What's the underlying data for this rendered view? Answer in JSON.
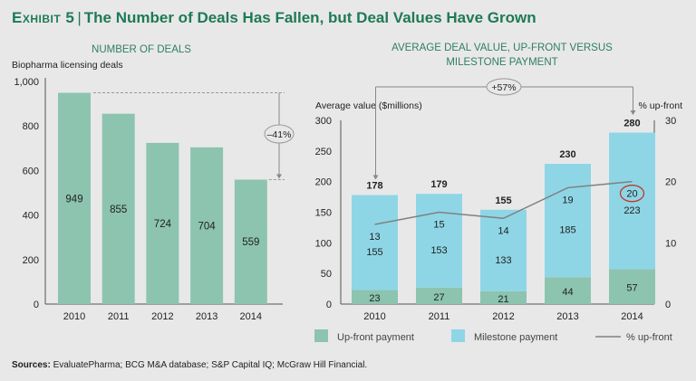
{
  "header": {
    "exhibit": "Exhibit 5",
    "title": "The Number of Deals Has Fallen, but Deal Values Have Grown"
  },
  "colors": {
    "title_green": "#1e7a55",
    "upfront": "#8cc4b0",
    "milestone": "#8ed6e6",
    "line": "#808080",
    "highlight_circle": "#c0392b"
  },
  "chart_data": [
    {
      "type": "bar",
      "title": "NUMBER OF DEALS",
      "ylabel": "Biopharma licensing deals",
      "xlabel": "",
      "categories": [
        "2010",
        "2011",
        "2012",
        "2013",
        "2014"
      ],
      "values": [
        949,
        855,
        724,
        704,
        559
      ],
      "value_labels": [
        "949",
        "855",
        "724",
        "704",
        "559"
      ],
      "ylim": [
        0,
        1000
      ],
      "yticks": [
        0,
        200,
        400,
        600,
        800,
        1000
      ],
      "ytick_labels": [
        "0",
        "200",
        "400",
        "600",
        "800",
        "1,000"
      ],
      "grid": false,
      "annotation": {
        "label": "–41%",
        "from": "2010",
        "to": "2014"
      }
    },
    {
      "type": "bar",
      "stacked": true,
      "title": "AVERAGE DEAL VALUE, UP-FRONT VERSUS MILESTONE PAYMENT",
      "ylabel": "Average value ($millions)",
      "y2label": "% up-front",
      "categories": [
        "2010",
        "2011",
        "2012",
        "2013",
        "2014"
      ],
      "series": [
        {
          "name": "Up-front payment",
          "values": [
            23,
            27,
            21,
            44,
            57
          ]
        },
        {
          "name": "Milestone payment",
          "values": [
            155,
            153,
            133,
            185,
            223
          ]
        }
      ],
      "totals": [
        178,
        179,
        155,
        230,
        280
      ],
      "line_series": {
        "name": "% up-front",
        "axis": "right",
        "values": [
          13,
          15,
          14,
          19,
          20
        ]
      },
      "ylim": [
        0,
        300
      ],
      "yticks": [
        0,
        50,
        100,
        150,
        200,
        250,
        300
      ],
      "y2lim": [
        0,
        30
      ],
      "y2ticks": [
        0,
        10,
        20,
        30
      ],
      "grid": false,
      "annotation": {
        "label": "+57%",
        "from": "2010",
        "to": "2014"
      },
      "highlighted_point": {
        "category": "2014",
        "value": 20
      },
      "legend": {
        "placement": "bottom-right",
        "entries": [
          "Up-front payment",
          "Milestone payment",
          "% up-front"
        ]
      }
    }
  ],
  "footer": {
    "sources_label": "Sources:",
    "sources_text": " EvaluatePharma; BCG M&A database; S&P Capital IQ; McGraw Hill Financial."
  }
}
